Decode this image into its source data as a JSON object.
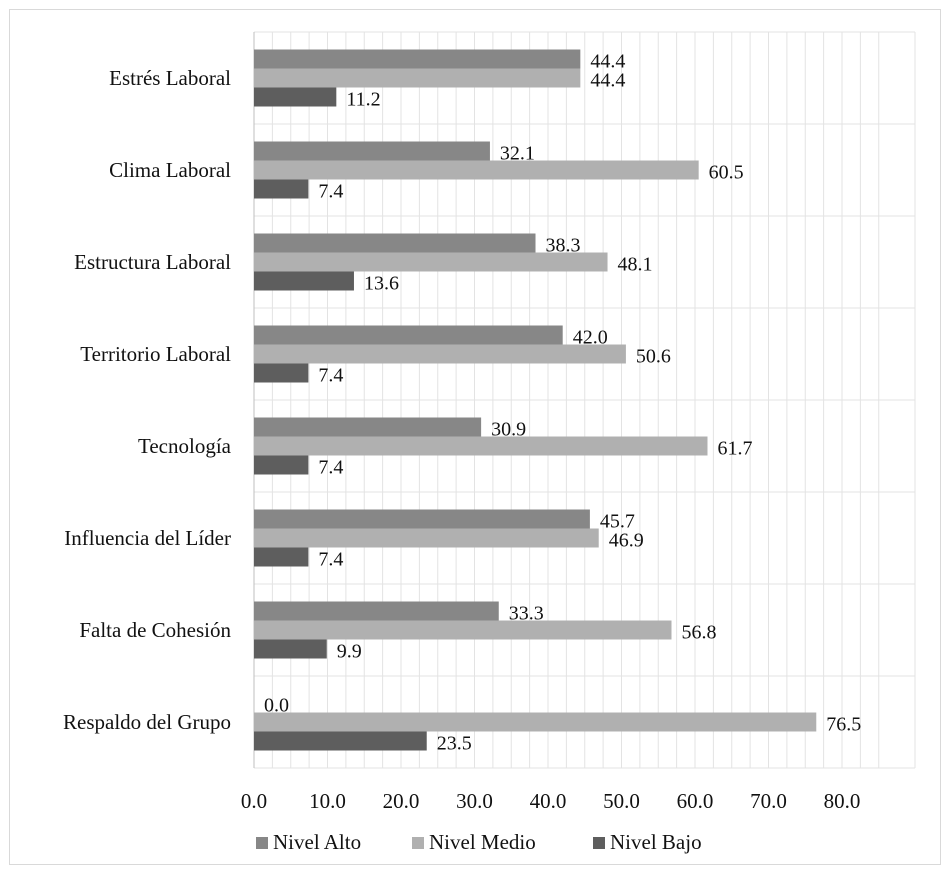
{
  "chart_data": {
    "type": "bar",
    "orientation": "horizontal",
    "title": "",
    "xlabel": "",
    "ylabel": "",
    "xlim": [
      0,
      85
    ],
    "x_ticks": [
      "0.0",
      "10.0",
      "20.0",
      "30.0",
      "40.0",
      "50.0",
      "60.0",
      "70.0",
      "80.0"
    ],
    "grid": "vertical minor gridlines",
    "legend_position": "bottom",
    "categories": [
      "Estrés Laboral",
      "Clima Laboral",
      "Estructura Laboral",
      "Territorio Laboral",
      "Tecnología",
      "Influencia del Líder",
      "Falta de Cohesión",
      "Respaldo del Grupo"
    ],
    "series": [
      {
        "name": "Nivel Alto",
        "color": "#878787",
        "values": [
          44.4,
          32.1,
          38.3,
          42.0,
          30.9,
          45.7,
          33.3,
          0.0
        ],
        "labels": [
          "44.4",
          "32.1",
          "38.3",
          "42.0",
          "30.9",
          "45.7",
          "33.3",
          "0.0"
        ]
      },
      {
        "name": "Nivel Medio",
        "color": "#b0b0b0",
        "values": [
          44.4,
          60.5,
          48.1,
          50.6,
          61.7,
          46.9,
          56.8,
          76.5
        ],
        "labels": [
          "44.4",
          "60.5",
          "48.1",
          "50.6",
          "61.7",
          "46.9",
          "56.8",
          "76.5"
        ]
      },
      {
        "name": "Nivel Bajo",
        "color": "#5e5e5e",
        "values": [
          11.2,
          7.4,
          13.6,
          7.4,
          7.4,
          7.4,
          9.9,
          23.5
        ],
        "labels": [
          "11.2",
          "7.4",
          "13.6",
          "7.4",
          "7.4",
          "7.4",
          "9.9",
          "23.5"
        ]
      }
    ]
  }
}
